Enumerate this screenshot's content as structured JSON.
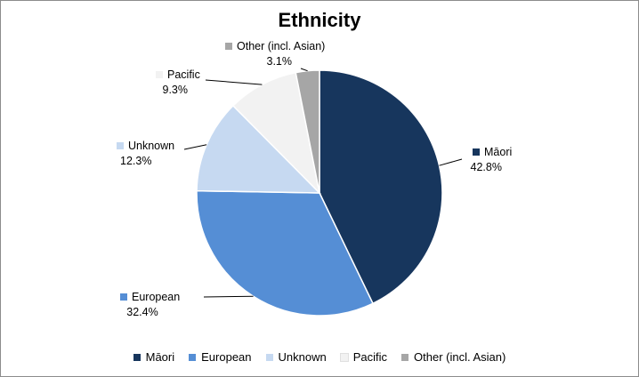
{
  "chart_data": {
    "type": "pie",
    "title": "Ethnicity",
    "slices": [
      {
        "label": "Māori",
        "value": 42.8,
        "display": "42.8%",
        "color": "#17365d"
      },
      {
        "label": "European",
        "value": 32.4,
        "display": "32.4%",
        "color": "#558ed5"
      },
      {
        "label": "Unknown",
        "value": 12.3,
        "display": "12.3%",
        "color": "#c6d9f1"
      },
      {
        "label": "Pacific",
        "value": 9.3,
        "display": "9.3%",
        "color": "#f2f2f2"
      },
      {
        "label": "Other (incl. Asian)",
        "value": 3.1,
        "display": "3.1%",
        "color": "#a6a6a6"
      }
    ],
    "legend_position": "bottom"
  }
}
